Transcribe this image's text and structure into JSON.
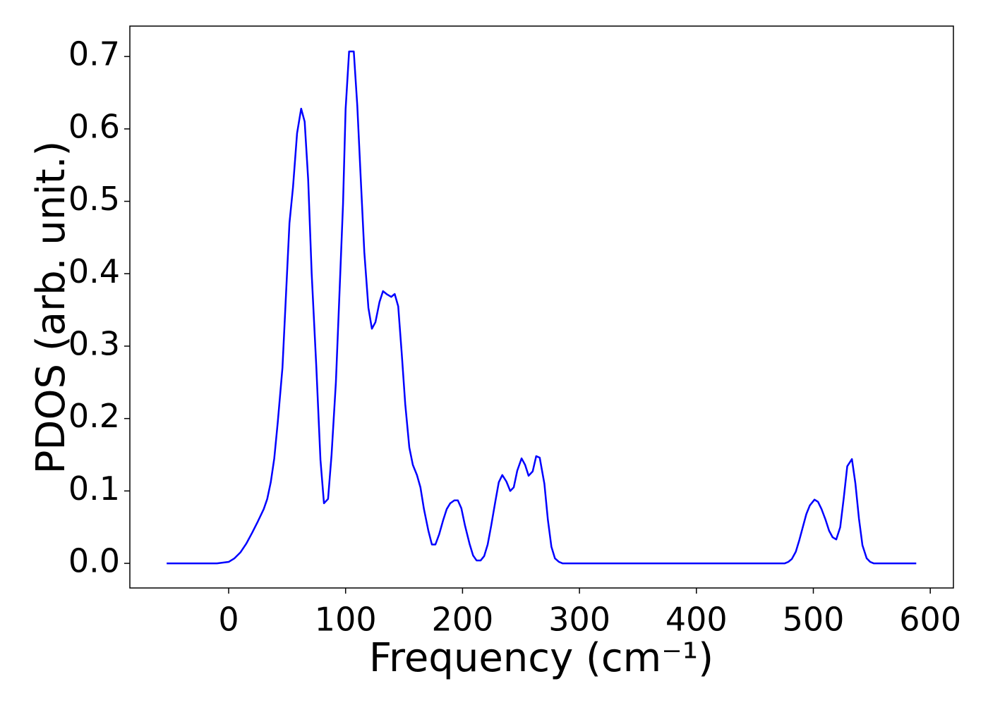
{
  "chart_data": {
    "type": "line",
    "xlabel": "Frequency (cm⁻¹)",
    "ylabel": "PDOS (arb. unit.)",
    "x": [
      -53,
      -10,
      0,
      5,
      10,
      15,
      20,
      25,
      30,
      33,
      36,
      39,
      42,
      46,
      49,
      52,
      55,
      58.5,
      62,
      65,
      68,
      71,
      75,
      78.5,
      81.5,
      85,
      88,
      91.7,
      94.7,
      97.8,
      100,
      103,
      107,
      110,
      113,
      116,
      119.5,
      122.5,
      125.5,
      129,
      132,
      135,
      139,
      142,
      145,
      148,
      151,
      154.5,
      157.5,
      161,
      164,
      167,
      170.8,
      173.8,
      176.8,
      180,
      183.5,
      186.5,
      189.5,
      193,
      196,
      199,
      202,
      206,
      209,
      212,
      215.5,
      218.5,
      221.5,
      224.5,
      228,
      231,
      234,
      237.5,
      240.8,
      243.8,
      246.8,
      250.5,
      253.5,
      256.5,
      260,
      263,
      266,
      270,
      273,
      276,
      279,
      282.5,
      285.5,
      380,
      475.6,
      478.6,
      481.6,
      485,
      488,
      491,
      494,
      497,
      501,
      504,
      507,
      510.5,
      513.5,
      516.5,
      519.6,
      523,
      526,
      529,
      533,
      536,
      539,
      542,
      545.6,
      548.6,
      551.6,
      588
    ],
    "series": [
      {
        "name": "PDOS",
        "color": "#0000ff",
        "values": [
          0,
          0,
          0.002,
          0.007,
          0.015,
          0.027,
          0.042,
          0.058,
          0.075,
          0.089,
          0.112,
          0.145,
          0.195,
          0.27,
          0.37,
          0.47,
          0.519,
          0.594,
          0.628,
          0.61,
          0.53,
          0.4,
          0.27,
          0.143,
          0.083,
          0.089,
          0.15,
          0.25,
          0.37,
          0.496,
          0.627,
          0.707,
          0.707,
          0.632,
          0.53,
          0.43,
          0.353,
          0.324,
          0.333,
          0.361,
          0.376,
          0.372,
          0.368,
          0.372,
          0.355,
          0.29,
          0.22,
          0.16,
          0.136,
          0.122,
          0.105,
          0.075,
          0.045,
          0.026,
          0.026,
          0.04,
          0.06,
          0.075,
          0.083,
          0.087,
          0.087,
          0.076,
          0.053,
          0.027,
          0.011,
          0.004,
          0.004,
          0.01,
          0.026,
          0.052,
          0.085,
          0.112,
          0.122,
          0.113,
          0.1,
          0.105,
          0.128,
          0.145,
          0.136,
          0.121,
          0.127,
          0.148,
          0.146,
          0.11,
          0.06,
          0.023,
          0.007,
          0.002,
          0,
          0,
          0,
          0.002,
          0.006,
          0.016,
          0.032,
          0.05,
          0.068,
          0.08,
          0.088,
          0.085,
          0.075,
          0.06,
          0.045,
          0.036,
          0.033,
          0.05,
          0.09,
          0.134,
          0.144,
          0.11,
          0.062,
          0.025,
          0.007,
          0.002,
          0,
          0
        ]
      }
    ],
    "xlim": [
      -84.5,
      619.8
    ],
    "ylim": [
      -0.034,
      0.742
    ],
    "xticks": [
      0,
      100,
      200,
      300,
      400,
      500,
      600
    ],
    "yticks": [
      {
        "value": 0,
        "label": "0.0"
      },
      0.1,
      0.2,
      0.3,
      0.4,
      0.5,
      0.6,
      0.7
    ],
    "grid": false
  }
}
